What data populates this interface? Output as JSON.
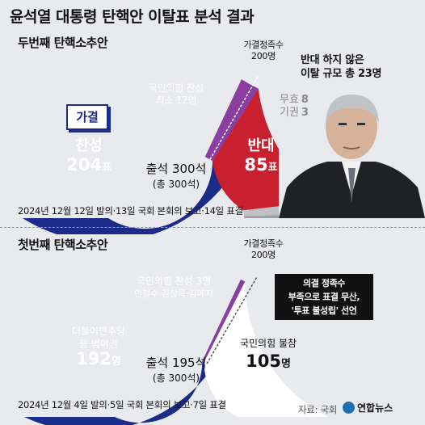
{
  "title": "윤석열 대통령 탄핵안 이탈표 분석 결과",
  "second": {
    "heading": "두번째 탄핵소추안",
    "threshold": [
      "가결정족수",
      "200명"
    ],
    "pass_badge": "가결",
    "yes_label": "찬성",
    "yes_value": "204",
    "yes_unit": "표",
    "no_label": "반대",
    "no_value": "85",
    "no_unit": "표",
    "ppp_yes": [
      "국민의힘 찬성",
      "최소 12명"
    ],
    "defect_note": [
      "반대 하지 않은",
      "이탈 규모 총 23명"
    ],
    "invalid_label": "무효",
    "invalid_value": "8",
    "abstain_label": "기권",
    "abstain_value": "3",
    "attendance": "출석 300석",
    "total": "(총 300석)",
    "schedule": "2024년 12월 12일 발의·13일 국회 본회의 보고·14일 표결"
  },
  "first": {
    "heading": "첫번째 탄핵소추안",
    "threshold": [
      "가결정족수",
      "200명"
    ],
    "ppp_yes": [
      "국민의힘 찬성 3명",
      "안철수·김상욱·김예지"
    ],
    "opp_label": [
      "더불어민주당",
      "등 범야권"
    ],
    "opp_value": "192",
    "opp_unit": "명",
    "ppp_absent_label": "국민의힘 불참",
    "ppp_absent_value": "105",
    "ppp_absent_unit": "명",
    "note": [
      "의결 정족수",
      "부족으로 표결 무산,",
      "'투표 불성립' 선언"
    ],
    "attendance": "출석 195석",
    "total": "(총 300석)",
    "schedule": "2024년 12월 4일 발의·5일 국회 본회의 보고·7일 표결"
  },
  "source": "자료: 국회",
  "logo_text": "연합뉴스",
  "colors": {
    "navy": "#1a2b8a",
    "red": "#c8202f",
    "purple": "#8a3fa0",
    "gray": "#bfc1c5",
    "bg": "#e9eaed"
  },
  "chart_data": [
    {
      "type": "pie",
      "title": "두번째 탄핵소추안",
      "categories": [
        "찬성",
        "반대",
        "무효",
        "기권"
      ],
      "values": [
        204,
        85,
        8,
        3
      ],
      "total_seats": 300,
      "threshold": 200
    },
    {
      "type": "pie",
      "title": "첫번째 탄핵소추안",
      "categories": [
        "더불어민주당 등 범야권",
        "국민의힘 찬성 3명",
        "국민의힘 불참"
      ],
      "values": [
        192,
        3,
        105
      ],
      "total_seats": 300,
      "threshold": 200
    }
  ]
}
